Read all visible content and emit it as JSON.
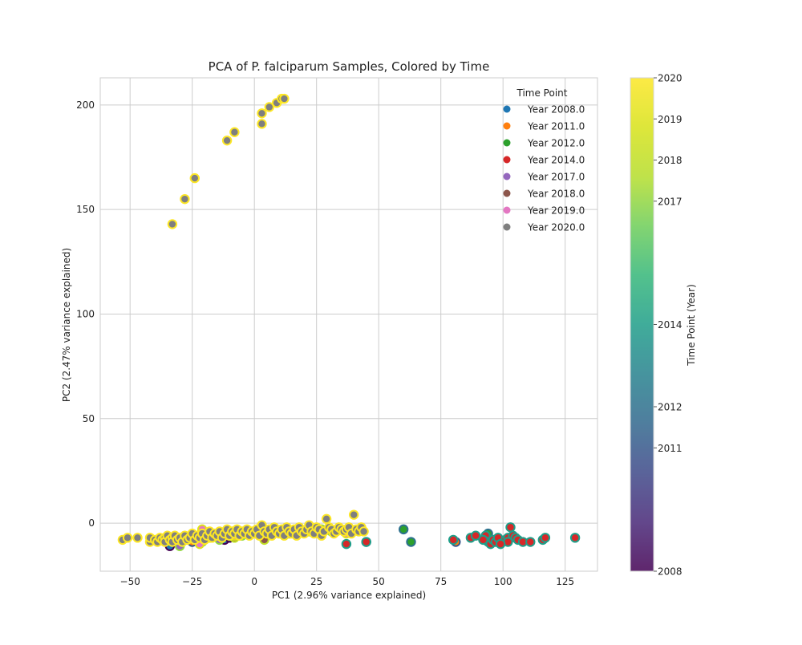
{
  "chart_data": {
    "type": "scatter",
    "title": "PCA of P. falciparum Samples, Colored by Time",
    "xlabel": "PC1 (2.96% variance explained)",
    "ylabel": "PC2 (2.47% variance explained)",
    "xlim": [
      -62,
      138
    ],
    "ylim": [
      -23,
      213
    ],
    "xticks": [
      -50,
      -25,
      0,
      25,
      50,
      75,
      100,
      125
    ],
    "yticks": [
      0,
      50,
      100,
      150,
      200
    ],
    "grid": true,
    "legend": {
      "title": "Time Point",
      "placement": "top-right",
      "entries": [
        {
          "label": "Year 2008.0",
          "color": "#1f77b4"
        },
        {
          "label": "Year 2011.0",
          "color": "#ff7f0e"
        },
        {
          "label": "Year 2012.0",
          "color": "#2ca02c"
        },
        {
          "label": "Year 2014.0",
          "color": "#d62728"
        },
        {
          "label": "Year 2017.0",
          "color": "#9467bd"
        },
        {
          "label": "Year 2018.0",
          "color": "#8c564b"
        },
        {
          "label": "Year 2019.0",
          "color": "#e377c2"
        },
        {
          "label": "Year 2020.0",
          "color": "#7f7f7f"
        }
      ]
    },
    "colorbar": {
      "label": "Time Point (Year)",
      "min": 2008,
      "max": 2020,
      "colormap": "viridis",
      "ticks": [
        2008,
        2011,
        2012,
        2014,
        2017,
        2018,
        2019,
        2020
      ]
    },
    "series": [
      {
        "name": "Year 2008.0",
        "color": "#1f77b4",
        "edge_year": 2008,
        "points": [
          [
            -34,
            -11
          ],
          [
            -30,
            -10
          ],
          [
            -12,
            -8
          ],
          [
            -10,
            -7
          ]
        ]
      },
      {
        "name": "Year 2011.0",
        "color": "#ff7f0e",
        "edge_year": 2011,
        "points": [
          [
            81,
            -9
          ],
          [
            -25,
            -9
          ]
        ]
      },
      {
        "name": "Year 2012.0",
        "color": "#2ca02c",
        "edge_year": 2012,
        "points": [
          [
            60,
            -3
          ],
          [
            63,
            -9
          ],
          [
            94,
            -5
          ],
          [
            45,
            -9
          ]
        ]
      },
      {
        "name": "Year 2014.0",
        "color": "#d62728",
        "edge_year": 2014,
        "points": [
          [
            37,
            -10
          ],
          [
            45,
            -9
          ],
          [
            80,
            -8
          ],
          [
            87,
            -7
          ],
          [
            89,
            -6
          ],
          [
            93,
            -6
          ],
          [
            94,
            -9
          ],
          [
            95,
            -10
          ],
          [
            96,
            -8
          ],
          [
            97,
            -9
          ],
          [
            98,
            -7
          ],
          [
            101,
            -8
          ],
          [
            102,
            -7
          ],
          [
            103,
            -2
          ],
          [
            104,
            -6
          ],
          [
            105,
            -7
          ],
          [
            106,
            -8
          ],
          [
            108,
            -9
          ],
          [
            111,
            -9
          ],
          [
            116,
            -8
          ],
          [
            117,
            -7
          ],
          [
            129,
            -7
          ],
          [
            102,
            -9
          ],
          [
            99,
            -10
          ],
          [
            92,
            -8
          ]
        ]
      },
      {
        "name": "Year 2017.0",
        "color": "#9467bd",
        "edge_year": 2017,
        "points": [
          [
            -30,
            -11
          ],
          [
            -21,
            -9
          ],
          [
            -14,
            -8
          ],
          [
            -5,
            -6
          ],
          [
            5,
            -6
          ],
          [
            14,
            -5
          ],
          [
            16,
            -5
          ],
          [
            22,
            -4
          ],
          [
            27,
            -3
          ],
          [
            31,
            -4
          ]
        ]
      },
      {
        "name": "Year 2018.0",
        "color": "#8c564b",
        "edge_year": 2018,
        "points": [
          [
            -8,
            -7
          ],
          [
            4,
            -8
          ],
          [
            26,
            -5
          ]
        ]
      },
      {
        "name": "Year 2019.0",
        "color": "#e377c2",
        "edge_year": 2019,
        "points": [
          [
            -22,
            -10
          ],
          [
            -21,
            -3
          ],
          [
            -18,
            -7
          ],
          [
            -8,
            -6
          ],
          [
            35,
            -3
          ],
          [
            37,
            -5
          ]
        ]
      },
      {
        "name": "Year 2020.0",
        "color": "#7f7f7f",
        "edge_year": 2020,
        "points": [
          [
            -33,
            143
          ],
          [
            -28,
            155
          ],
          [
            -24,
            165
          ],
          [
            -11,
            183
          ],
          [
            -8,
            187
          ],
          [
            3,
            191
          ],
          [
            3,
            196
          ],
          [
            6,
            199
          ],
          [
            9,
            201
          ],
          [
            11,
            203
          ],
          [
            12,
            203
          ],
          [
            -53,
            -8
          ],
          [
            -51,
            -7
          ],
          [
            -47,
            -7
          ],
          [
            -42,
            -9
          ],
          [
            -42,
            -7
          ],
          [
            -40,
            -8
          ],
          [
            -39,
            -9
          ],
          [
            -38,
            -7
          ],
          [
            -37,
            -8
          ],
          [
            -36,
            -7
          ],
          [
            -36,
            -9
          ],
          [
            -35,
            -6
          ],
          [
            -34,
            -8
          ],
          [
            -33,
            -7
          ],
          [
            -33,
            -9
          ],
          [
            -32,
            -6
          ],
          [
            -31,
            -8
          ],
          [
            -30,
            -7
          ],
          [
            -29,
            -9
          ],
          [
            -28,
            -6
          ],
          [
            -27,
            -8
          ],
          [
            -26,
            -7
          ],
          [
            -25,
            -5
          ],
          [
            -24,
            -8
          ],
          [
            -23,
            -6
          ],
          [
            -22,
            -7
          ],
          [
            -21,
            -5
          ],
          [
            -20,
            -8
          ],
          [
            -19,
            -6
          ],
          [
            -18,
            -4
          ],
          [
            -17,
            -7
          ],
          [
            -16,
            -5
          ],
          [
            -15,
            -6
          ],
          [
            -14,
            -4
          ],
          [
            -13,
            -7
          ],
          [
            -12,
            -5
          ],
          [
            -11,
            -3
          ],
          [
            -10,
            -6
          ],
          [
            -9,
            -4
          ],
          [
            -8,
            -5
          ],
          [
            -7,
            -3
          ],
          [
            -6,
            -6
          ],
          [
            -5,
            -4
          ],
          [
            -4,
            -5
          ],
          [
            -3,
            -3
          ],
          [
            -2,
            -6
          ],
          [
            -1,
            -4
          ],
          [
            0,
            -5
          ],
          [
            1,
            -3
          ],
          [
            2,
            -6
          ],
          [
            3,
            -1
          ],
          [
            4,
            -4
          ],
          [
            5,
            -5
          ],
          [
            6,
            -3
          ],
          [
            7,
            -6
          ],
          [
            8,
            -2
          ],
          [
            9,
            -4
          ],
          [
            10,
            -5
          ],
          [
            11,
            -3
          ],
          [
            12,
            -6
          ],
          [
            13,
            -2
          ],
          [
            14,
            -4
          ],
          [
            15,
            -5
          ],
          [
            16,
            -3
          ],
          [
            17,
            -6
          ],
          [
            18,
            -2
          ],
          [
            19,
            -4
          ],
          [
            20,
            -5
          ],
          [
            21,
            -3
          ],
          [
            22,
            -1
          ],
          [
            23,
            -4
          ],
          [
            24,
            -5
          ],
          [
            25,
            -2
          ],
          [
            26,
            -3
          ],
          [
            27,
            -6
          ],
          [
            28,
            -4
          ],
          [
            29,
            2
          ],
          [
            30,
            -2
          ],
          [
            31,
            -3
          ],
          [
            32,
            -5
          ],
          [
            33,
            -4
          ],
          [
            34,
            -2
          ],
          [
            35,
            -3
          ],
          [
            36,
            -4
          ],
          [
            37,
            -3
          ],
          [
            38,
            -2
          ],
          [
            39,
            -5
          ],
          [
            40,
            4
          ],
          [
            41,
            -3
          ],
          [
            42,
            -4
          ],
          [
            43,
            -2
          ],
          [
            44,
            -4
          ]
        ]
      }
    ]
  }
}
